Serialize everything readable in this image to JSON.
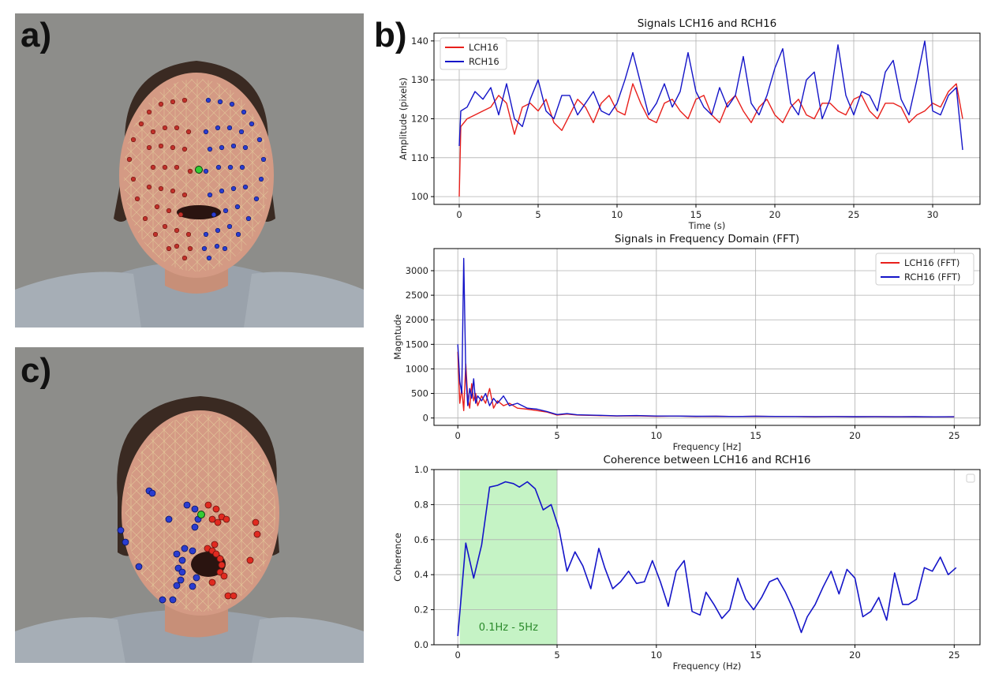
{
  "panels": {
    "a": "a)",
    "b": "b)",
    "c": "c)"
  },
  "colors": {
    "left": "#e8201c",
    "right": "#1414c8",
    "band": "#c2f2c2",
    "band_text": "#2a8a2a",
    "landmark_mid": "#33cc33"
  },
  "chart_data": [
    {
      "type": "line",
      "title": "Signals LCH16 and RCH16",
      "xlabel": "Time (s)",
      "ylabel": "Amplitude (pixels)",
      "xlim": [
        -1.6,
        33.0
      ],
      "ylim": [
        98,
        142
      ],
      "xticks": [
        0,
        5,
        10,
        15,
        20,
        25,
        30
      ],
      "yticks": [
        100,
        110,
        120,
        130,
        140
      ],
      "grid": true,
      "legend": "upper-left",
      "series": [
        {
          "name": "LCH16",
          "color": "#e8201c",
          "x": [
            0,
            0.1,
            0.5,
            1,
            1.5,
            2,
            2.5,
            3,
            3.5,
            4,
            4.5,
            5,
            5.5,
            6,
            6.5,
            7,
            7.5,
            8,
            8.5,
            9,
            9.5,
            10,
            10.5,
            11,
            11.5,
            12,
            12.5,
            13,
            13.5,
            14,
            14.5,
            15,
            15.5,
            16,
            16.5,
            17,
            17.5,
            18,
            18.5,
            19,
            19.5,
            20,
            20.5,
            21,
            21.5,
            22,
            22.5,
            23,
            23.5,
            24,
            24.5,
            25,
            25.5,
            26,
            26.5,
            27,
            27.5,
            28,
            28.5,
            29,
            29.5,
            30,
            30.5,
            31,
            31.5,
            31.9
          ],
          "y": [
            100,
            118,
            120,
            121,
            122,
            123,
            126,
            124,
            116,
            123,
            124,
            122,
            125,
            119,
            117,
            121,
            125,
            123,
            119,
            124,
            126,
            122,
            121,
            129,
            124,
            120,
            119,
            124,
            125,
            122,
            120,
            125,
            126,
            121,
            119,
            124,
            126,
            122,
            119,
            123,
            125,
            121,
            119,
            123,
            125,
            121,
            120,
            124,
            124,
            122,
            121,
            125,
            126,
            122,
            120,
            124,
            124,
            123,
            119,
            121,
            122,
            124,
            123,
            127,
            129,
            120
          ]
        },
        {
          "name": "RCH16",
          "color": "#1414c8",
          "x": [
            0,
            0.1,
            0.5,
            1,
            1.5,
            2,
            2.5,
            3,
            3.5,
            4,
            4.5,
            5,
            5.5,
            6,
            6.5,
            7,
            7.5,
            8,
            8.5,
            9,
            9.5,
            10,
            10.5,
            11,
            11.5,
            12,
            12.5,
            13,
            13.5,
            14,
            14.5,
            15,
            15.5,
            16,
            16.5,
            17,
            17.5,
            18,
            18.5,
            19,
            19.5,
            20,
            20.5,
            21,
            21.5,
            22,
            22.5,
            23,
            23.5,
            24,
            24.5,
            25,
            25.5,
            26,
            26.5,
            27,
            27.5,
            28,
            28.5,
            29,
            29.5,
            30,
            30.5,
            31,
            31.5,
            31.9
          ],
          "y": [
            113,
            122,
            123,
            127,
            125,
            128,
            121,
            129,
            120,
            118,
            125,
            130,
            122,
            120,
            126,
            126,
            121,
            124,
            127,
            122,
            121,
            124,
            130,
            137,
            129,
            121,
            124,
            129,
            123,
            127,
            137,
            127,
            123,
            121,
            128,
            123,
            126,
            136,
            124,
            121,
            126,
            133,
            138,
            124,
            121,
            130,
            132,
            120,
            125,
            139,
            126,
            121,
            127,
            126,
            122,
            132,
            135,
            125,
            121,
            130,
            140,
            122,
            121,
            126,
            128,
            112
          ]
        }
      ]
    },
    {
      "type": "line",
      "title": "Signals in Frequency Domain (FFT)",
      "xlabel": "Frequency [Hz]",
      "ylabel": "Magntude",
      "xlim": [
        -1.2,
        26.3
      ],
      "ylim": [
        -150,
        3450
      ],
      "xticks": [
        0,
        5,
        10,
        15,
        20,
        25
      ],
      "yticks": [
        0,
        500,
        1000,
        1500,
        2000,
        2500,
        3000
      ],
      "grid": true,
      "legend": "upper-right",
      "series": [
        {
          "name": "LCH16 (FFT)",
          "color": "#e8201c",
          "x": [
            0,
            0.1,
            0.2,
            0.3,
            0.4,
            0.5,
            0.6,
            0.7,
            0.8,
            0.9,
            1.0,
            1.2,
            1.4,
            1.6,
            1.8,
            2.0,
            2.3,
            2.6,
            3.0,
            3.5,
            4.0,
            4.5,
            5.0,
            5.5,
            6,
            7,
            8,
            9,
            10,
            11,
            12,
            13,
            14,
            15,
            16,
            17,
            18,
            19,
            20,
            21,
            22,
            23,
            24,
            25
          ],
          "y": [
            1350,
            300,
            600,
            150,
            1100,
            400,
            200,
            700,
            350,
            500,
            250,
            450,
            300,
            600,
            200,
            350,
            250,
            300,
            200,
            180,
            150,
            120,
            60,
            80,
            60,
            50,
            40,
            45,
            35,
            40,
            30,
            35,
            30,
            35,
            30,
            30,
            25,
            30,
            25,
            28,
            25,
            25,
            22,
            25
          ]
        },
        {
          "name": "RCH16 (FFT)",
          "color": "#1414c8",
          "x": [
            0,
            0.1,
            0.2,
            0.3,
            0.4,
            0.5,
            0.6,
            0.7,
            0.8,
            0.9,
            1.0,
            1.2,
            1.4,
            1.6,
            1.8,
            2.0,
            2.3,
            2.6,
            3.0,
            3.5,
            4.0,
            4.5,
            5.0,
            5.5,
            6,
            7,
            8,
            9,
            10,
            11,
            12,
            13,
            14,
            15,
            16,
            17,
            18,
            19,
            20,
            21,
            22,
            23,
            24,
            25
          ],
          "y": [
            1500,
            750,
            500,
            3250,
            900,
            250,
            600,
            400,
            800,
            300,
            450,
            350,
            500,
            250,
            400,
            300,
            450,
            250,
            300,
            200,
            180,
            130,
            70,
            90,
            65,
            55,
            45,
            50,
            40,
            40,
            35,
            35,
            30,
            35,
            32,
            30,
            28,
            30,
            26,
            28,
            25,
            26,
            24,
            25
          ]
        }
      ]
    },
    {
      "type": "line",
      "title": "Coherence between LCH16 and RCH16",
      "xlabel": "Frequency (Hz)",
      "ylabel": "Coherence",
      "xlim": [
        -1.2,
        26.3
      ],
      "ylim": [
        0,
        1.0
      ],
      "xticks": [
        0,
        5,
        10,
        15,
        20,
        25
      ],
      "yticks": [
        0.0,
        0.2,
        0.4,
        0.6,
        0.8,
        1.0
      ],
      "grid": true,
      "band": {
        "from": 0.1,
        "to": 5,
        "label": "0.1Hz - 5Hz"
      },
      "series": [
        {
          "name": "",
          "color": "#1414c8",
          "x": [
            0,
            0.4,
            0.8,
            1.2,
            1.6,
            2.0,
            2.4,
            2.8,
            3.1,
            3.5,
            3.9,
            4.3,
            4.7,
            5.1,
            5.5,
            5.9,
            6.3,
            6.7,
            7.1,
            7.4,
            7.8,
            8.2,
            8.6,
            9.0,
            9.4,
            9.8,
            10.2,
            10.6,
            11.0,
            11.4,
            11.8,
            12.2,
            12.5,
            12.9,
            13.3,
            13.7,
            14.1,
            14.5,
            14.9,
            15.3,
            15.7,
            16.1,
            16.5,
            16.9,
            17.3,
            17.6,
            18.0,
            18.4,
            18.8,
            19.2,
            19.6,
            20.0,
            20.4,
            20.8,
            21.2,
            21.6,
            22.0,
            22.4,
            22.7,
            23.1,
            23.5,
            23.9,
            24.3,
            24.7,
            25.1
          ],
          "y": [
            0.05,
            0.58,
            0.38,
            0.57,
            0.9,
            0.91,
            0.93,
            0.92,
            0.9,
            0.93,
            0.89,
            0.77,
            0.8,
            0.66,
            0.42,
            0.53,
            0.45,
            0.32,
            0.55,
            0.44,
            0.32,
            0.36,
            0.42,
            0.35,
            0.36,
            0.48,
            0.36,
            0.22,
            0.42,
            0.48,
            0.19,
            0.17,
            0.3,
            0.23,
            0.15,
            0.2,
            0.38,
            0.26,
            0.2,
            0.27,
            0.36,
            0.38,
            0.3,
            0.2,
            0.07,
            0.16,
            0.23,
            0.33,
            0.42,
            0.29,
            0.43,
            0.38,
            0.16,
            0.19,
            0.27,
            0.14,
            0.41,
            0.23,
            0.23,
            0.26,
            0.44,
            0.42,
            0.5,
            0.4,
            0.44
          ]
        }
      ]
    }
  ]
}
